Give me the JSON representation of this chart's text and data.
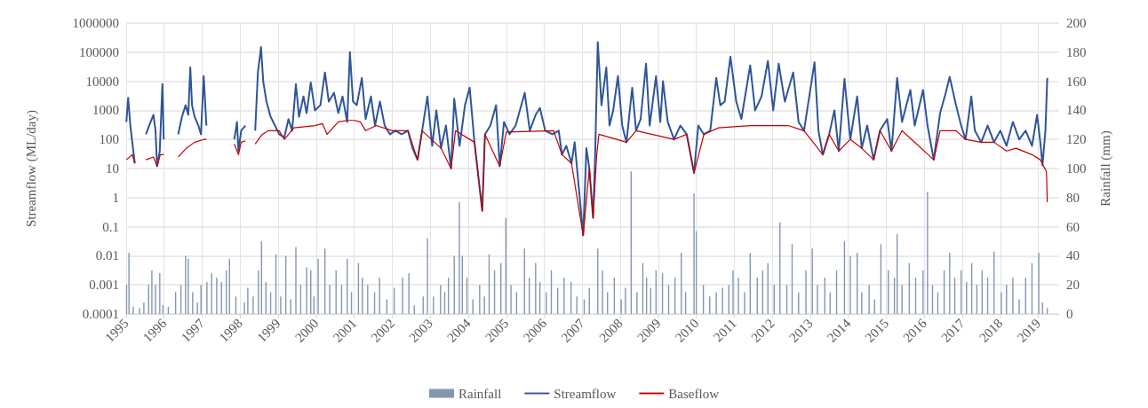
{
  "chart_data": {
    "type": "line",
    "ylabel": "Streamflow (ML/day)",
    "y2label": "Rainfall (mm)",
    "log": "y",
    "grid": true,
    "legend": "bottom",
    "marker": "none",
    "line_style": "solid",
    "xlim": [
      "1995-01-01",
      "2019-07-20"
    ],
    "xticks": [
      "1995",
      "1996",
      "1997",
      "1998",
      "1999",
      "2000",
      "2001",
      "2002",
      "2003",
      "2004",
      "2005",
      "2006",
      "2007",
      "2008",
      "2009",
      "2010",
      "2011",
      "2012",
      "2013",
      "2014",
      "2015",
      "2016",
      "2017",
      "2018",
      "2019"
    ],
    "ylim": [
      0.0001,
      1000000
    ],
    "yticks": [
      0.0001,
      0.001,
      0.01,
      0.1,
      1,
      10,
      100,
      1000,
      10000,
      100000,
      1000000
    ],
    "y2lim": [
      0,
      200
    ],
    "y2ticks": [
      0,
      20,
      40,
      60,
      80,
      100,
      120,
      140,
      160,
      180,
      200
    ],
    "series": [
      {
        "name": "Rainfall",
        "type": "bar",
        "axis": "y2",
        "color": "#8497b0",
        "x": [
          "1995-01-05",
          "1995-01-28",
          "1995-03-10",
          "1995-05-10",
          "1995-06-20",
          "1995-08-05",
          "1995-09-05",
          "1995-10-10",
          "1995-11-20",
          "1995-12-20",
          "1996-02-10",
          "1996-04-20",
          "1996-06-10",
          "1996-07-25",
          "1996-08-20",
          "1996-10-01",
          "1996-11-15",
          "1996-12-20",
          "1997-02-15",
          "1997-04-01",
          "1997-05-20",
          "1997-07-05",
          "1997-08-20",
          "1997-09-20",
          "1997-11-20",
          "1998-02-10",
          "1998-03-15",
          "1998-05-05",
          "1998-06-25",
          "1998-07-25",
          "1998-09-05",
          "1998-10-20",
          "1998-12-10",
          "1999-01-25",
          "1999-03-15",
          "1999-05-01",
          "1999-06-20",
          "1999-08-05",
          "1999-10-01",
          "1999-11-10",
          "1999-12-10",
          "2000-01-20",
          "2000-03-25",
          "2000-05-10",
          "2000-07-10",
          "2000-09-01",
          "2000-10-25",
          "2000-12-05",
          "2001-02-10",
          "2001-03-20",
          "2001-05-10",
          "2001-07-15",
          "2001-09-01",
          "2001-11-10",
          "2002-01-20",
          "2002-04-10",
          "2002-06-10",
          "2002-08-01",
          "2002-10-25",
          "2002-12-05",
          "2003-02-01",
          "2003-04-10",
          "2003-05-20",
          "2003-06-25",
          "2003-08-20",
          "2003-10-08",
          "2003-11-05",
          "2003-12-20",
          "2004-02-15",
          "2004-04-20",
          "2004-06-05",
          "2004-07-20",
          "2004-09-10",
          "2004-11-10",
          "2004-12-28",
          "2005-02-15",
          "2005-04-10",
          "2005-06-25",
          "2005-08-10",
          "2005-10-10",
          "2005-11-20",
          "2006-01-20",
          "2006-03-10",
          "2006-05-10",
          "2006-07-10",
          "2006-09-15",
          "2006-11-10",
          "2007-01-20",
          "2007-03-10",
          "2007-05-30",
          "2007-07-15",
          "2007-09-01",
          "2007-11-05",
          "2008-01-10",
          "2008-02-20",
          "2008-04-15",
          "2008-06-10",
          "2008-08-05",
          "2008-09-10",
          "2008-10-20",
          "2008-12-10",
          "2009-02-10",
          "2009-04-10",
          "2009-06-10",
          "2009-08-10",
          "2009-09-20",
          "2009-12-10",
          "2010-01-01",
          "2010-03-10",
          "2010-05-10",
          "2010-07-12",
          "2010-09-10",
          "2010-11-10",
          "2010-12-20",
          "2011-02-10",
          "2011-04-10",
          "2011-06-03",
          "2011-08-10",
          "2011-10-01",
          "2011-11-20",
          "2012-01-20",
          "2012-03-15",
          "2012-05-20",
          "2012-07-10",
          "2012-09-10",
          "2012-11-20",
          "2013-01-20",
          "2013-03-10",
          "2013-05-20",
          "2013-07-10",
          "2013-09-10",
          "2013-11-25",
          "2014-01-20",
          "2014-03-27",
          "2014-05-10",
          "2014-07-20",
          "2014-09-10",
          "2014-11-10",
          "2015-01-20",
          "2015-03-20",
          "2015-04-15",
          "2015-06-01",
          "2015-08-10",
          "2015-10-10",
          "2015-12-20",
          "2016-02-01",
          "2016-03-20",
          "2016-05-10",
          "2016-07-10",
          "2016-09-01",
          "2016-10-20",
          "2016-12-20",
          "2017-02-10",
          "2017-04-01",
          "2017-05-20",
          "2017-07-10",
          "2017-09-01",
          "2017-11-01",
          "2018-01-10",
          "2018-03-01",
          "2018-05-01",
          "2018-07-01",
          "2018-09-01",
          "2018-11-01",
          "2019-01-05",
          "2019-02-10",
          "2019-03-28"
        ],
        "values": [
          20,
          42,
          5,
          4,
          8,
          20,
          30,
          20,
          28,
          6,
          5,
          15,
          20,
          40,
          38,
          15,
          8,
          20,
          22,
          28,
          25,
          22,
          30,
          38,
          12,
          8,
          18,
          12,
          30,
          50,
          22,
          15,
          41,
          12,
          40,
          10,
          46,
          20,
          32,
          30,
          12,
          38,
          45,
          20,
          30,
          20,
          38,
          15,
          35,
          25,
          20,
          15,
          25,
          10,
          18,
          25,
          28,
          6,
          12,
          52,
          12,
          20,
          15,
          25,
          40,
          77,
          40,
          25,
          10,
          20,
          12,
          41,
          30,
          35,
          66,
          20,
          15,
          45,
          25,
          35,
          22,
          15,
          30,
          18,
          25,
          22,
          12,
          10,
          18,
          45,
          30,
          15,
          25,
          10,
          18,
          98,
          15,
          35,
          25,
          18,
          30,
          28,
          20,
          25,
          42,
          15,
          83,
          57,
          20,
          12,
          15,
          18,
          20,
          30,
          25,
          15,
          42,
          25,
          30,
          35,
          20,
          63,
          20,
          48,
          15,
          30,
          45,
          20,
          25,
          15,
          30,
          50,
          40,
          42,
          15,
          20,
          10,
          48,
          30,
          25,
          55,
          20,
          35,
          25,
          30,
          84,
          20,
          15,
          30,
          42,
          25,
          30,
          22,
          35,
          20,
          30,
          25,
          43,
          15,
          20,
          25,
          10,
          25,
          35,
          42,
          8,
          4
        ]
      },
      {
        "name": "Streamflow",
        "color": "#2f5597",
        "x": [
          "1995-01-03",
          "1995-01-20",
          "1995-02-10",
          "1995-03-05",
          "1995-03-25",
          "1995-04-20",
          "1995-07-10",
          "1995-08-10",
          "1995-09-20",
          "1995-10-10",
          "1995-10-25",
          "1995-11-20",
          "1995-12-15",
          "1995-12-28",
          "1996-02-01",
          "1996-05-15",
          "1996-06-20",
          "1996-07-25",
          "1996-08-20",
          "1996-09-08",
          "1996-09-25",
          "1996-10-20",
          "1996-11-25",
          "1996-12-20",
          "1997-01-15",
          "1997-02-10",
          "1997-03-15",
          "1997-11-05",
          "1997-12-01",
          "1997-12-15",
          "1998-01-10",
          "1998-02-20",
          "1998-04-10",
          "1998-05-25",
          "1998-06-20",
          "1998-07-20",
          "1998-08-10",
          "1998-09-10",
          "1998-10-20",
          "1998-12-01",
          "1999-01-10",
          "1999-03-01",
          "1999-04-10",
          "1999-05-15",
          "1999-06-20",
          "1999-07-20",
          "1999-09-01",
          "1999-10-01",
          "1999-11-10",
          "1999-12-20",
          "2000-02-10",
          "2000-03-25",
          "2000-05-01",
          "2000-06-20",
          "2000-08-01",
          "2000-09-10",
          "2000-10-25",
          "2000-11-20",
          "2000-12-20",
          "2001-01-25",
          "2001-03-15",
          "2001-04-20",
          "2001-06-10",
          "2001-07-20",
          "2001-09-05",
          "2001-10-20",
          "2001-12-10",
          "2002-02-01",
          "2002-04-01",
          "2002-06-01",
          "2002-07-15",
          "2002-09-01",
          "2002-10-15",
          "2002-12-05",
          "2003-01-20",
          "2003-03-01",
          "2003-04-15",
          "2003-06-01",
          "2003-07-20",
          "2003-08-20",
          "2003-10-10",
          "2003-12-01",
          "2004-01-15",
          "2004-03-01",
          "2004-05-15",
          "2004-06-10",
          "2004-08-01",
          "2004-09-25",
          "2004-10-30",
          "2004-12-10",
          "2005-02-01",
          "2005-04-01",
          "2005-06-27",
          "2005-08-15",
          "2005-10-10",
          "2005-11-20",
          "2006-01-10",
          "2006-03-20",
          "2006-05-20",
          "2006-06-20",
          "2006-08-01",
          "2006-09-20",
          "2006-10-20",
          "2007-01-10",
          "2007-02-10",
          "2007-03-10",
          "2007-04-15",
          "2007-05-05",
          "2007-05-30",
          "2007-07-05",
          "2007-08-20",
          "2007-09-20",
          "2007-10-25",
          "2007-12-10",
          "2008-01-20",
          "2008-03-01",
          "2008-04-25",
          "2008-06-01",
          "2008-07-15",
          "2008-09-05",
          "2008-10-10",
          "2008-12-10",
          "2009-01-20",
          "2009-02-15",
          "2009-04-01",
          "2009-06-01",
          "2009-08-01",
          "2009-10-01",
          "2009-12-10",
          "2010-01-20",
          "2010-03-15",
          "2010-05-15",
          "2010-07-12",
          "2010-08-20",
          "2010-10-01",
          "2010-11-25",
          "2011-01-20",
          "2011-03-10",
          "2011-06-03",
          "2011-07-20",
          "2011-09-20",
          "2011-11-20",
          "2012-01-10",
          "2012-03-03",
          "2012-05-01",
          "2012-07-20",
          "2012-09-10",
          "2012-11-01",
          "2013-02-10",
          "2013-03-20",
          "2013-05-01",
          "2013-07-01",
          "2013-08-20",
          "2013-10-01",
          "2013-11-25",
          "2014-01-20",
          "2014-03-27",
          "2014-05-10",
          "2014-07-01",
          "2014-09-01",
          "2014-11-01",
          "2015-01-10",
          "2015-02-20",
          "2015-04-15",
          "2015-06-01",
          "2015-08-20",
          "2015-10-01",
          "2015-12-20",
          "2016-02-01",
          "2016-04-01",
          "2016-06-01",
          "2016-07-25",
          "2016-09-01",
          "2016-11-01",
          "2016-12-20",
          "2017-02-01",
          "2017-03-28",
          "2017-05-01",
          "2017-07-01",
          "2017-09-01",
          "2017-11-01",
          "2018-01-01",
          "2018-03-01",
          "2018-05-01",
          "2018-07-01",
          "2018-09-01",
          "2018-11-01",
          "2018-12-20",
          "2019-01-20",
          "2019-02-10",
          "2019-03-10",
          "2019-03-28"
        ],
        "values": [
          400,
          2700,
          300,
          60,
          15,
          null,
          150,
          300,
          700,
          200,
          12,
          40,
          8000,
          100,
          null,
          150,
          600,
          1500,
          700,
          30000,
          1500,
          600,
          300,
          150,
          15000,
          300,
          null,
          100,
          400,
          40,
          200,
          300,
          null,
          200,
          20000,
          150000,
          10000,
          2000,
          600,
          300,
          150,
          120,
          500,
          200,
          8000,
          600,
          3000,
          800,
          9000,
          1000,
          1500,
          20000,
          2000,
          4000,
          800,
          3000,
          400,
          100000,
          2000,
          1500,
          13000,
          500,
          3000,
          300,
          2000,
          300,
          150,
          200,
          150,
          200,
          50,
          20,
          200,
          3000,
          60,
          1000,
          50,
          300,
          10,
          2500,
          60,
          1500,
          6000,
          80,
          0.35,
          150,
          300,
          1500,
          12,
          400,
          150,
          300,
          4000,
          200,
          700,
          1200,
          200,
          150,
          200,
          30,
          60,
          15,
          80,
          0.05,
          50,
          10,
          0.2,
          30,
          220000,
          1500,
          30000,
          300,
          1000,
          15000,
          300,
          80,
          6000,
          200,
          500,
          40000,
          300,
          15000,
          400,
          10000,
          400,
          100,
          300,
          150,
          7,
          300,
          150,
          200,
          13000,
          1500,
          2000,
          70000,
          2000,
          500,
          35000,
          1000,
          3000,
          50000,
          1000,
          40000,
          2000,
          20000,
          400,
          200,
          45000,
          200,
          30,
          150,
          1000,
          40,
          12000,
          100,
          3000,
          50,
          300,
          20,
          200,
          500,
          40,
          13000,
          400,
          5000,
          300,
          5000,
          300,
          20,
          800,
          4000,
          14000,
          1500,
          300,
          100,
          3000,
          200,
          80,
          300,
          80,
          200,
          60,
          400,
          100,
          200,
          60,
          700,
          80,
          13,
          200,
          13000
        ]
      },
      {
        "name": "Baseflow",
        "color": "#c00000",
        "x": [
          "1995-01-03",
          "1995-03-01",
          "1995-03-25",
          "1995-04-20",
          "1995-07-10",
          "1995-09-20",
          "1995-10-25",
          "1995-11-25",
          "1995-12-28",
          "1996-02-01",
          "1996-05-15",
          "1996-08-01",
          "1996-10-20",
          "1997-01-15",
          "1997-02-10",
          "1997-03-15",
          "1997-11-05",
          "1997-12-15",
          "1998-01-10",
          "1998-02-20",
          "1998-04-10",
          "1998-05-25",
          "1998-08-01",
          "1998-10-01",
          "1999-01-10",
          "1999-03-01",
          "1999-06-01",
          "1999-12-20",
          "2000-03-01",
          "2000-04-15",
          "2000-08-01",
          "2000-11-01",
          "2001-01-01",
          "2001-03-01",
          "2001-04-20",
          "2001-08-01",
          "2002-01-01",
          "2002-06-01",
          "2002-09-01",
          "2002-10-15",
          "2003-04-15",
          "2003-07-20",
          "2003-09-01",
          "2004-03-01",
          "2004-05-15",
          "2004-06-10",
          "2004-10-30",
          "2005-01-01",
          "2006-04-01",
          "2006-06-20",
          "2006-09-20",
          "2007-01-10",
          "2007-03-10",
          "2007-04-15",
          "2007-05-20",
          "2007-06-10",
          "2008-03-01",
          "2008-06-01",
          "2009-06-01",
          "2009-10-01",
          "2009-12-10",
          "2010-03-15",
          "2010-08-01",
          "2011-06-01",
          "2012-06-01",
          "2012-11-01",
          "2013-05-01",
          "2013-07-01",
          "2013-10-01",
          "2014-01-20",
          "2014-05-10",
          "2014-09-01",
          "2014-11-01",
          "2015-02-20",
          "2015-06-01",
          "2016-04-01",
          "2016-06-01",
          "2016-11-01",
          "2017-02-01",
          "2017-07-01",
          "2017-11-01",
          "2018-03-01",
          "2018-06-01",
          "2018-11-01",
          "2019-01-20",
          "2019-02-20",
          "2019-03-20",
          "2019-03-28"
        ],
        "values": [
          20,
          30,
          15,
          null,
          20,
          25,
          12,
          30,
          30,
          null,
          25,
          50,
          80,
          100,
          100,
          null,
          70,
          30,
          80,
          90,
          null,
          70,
          150,
          200,
          200,
          100,
          250,
          300,
          350,
          150,
          400,
          450,
          450,
          400,
          200,
          300,
          200,
          200,
          20,
          200,
          50,
          10,
          200,
          80,
          0.35,
          150,
          12,
          180,
          200,
          30,
          15,
          0.05,
          10,
          0.2,
          30,
          150,
          80,
          200,
          100,
          150,
          7,
          150,
          250,
          300,
          300,
          200,
          30,
          150,
          40,
          100,
          50,
          20,
          200,
          40,
          200,
          20,
          200,
          200,
          100,
          80,
          80,
          40,
          50,
          30,
          20,
          12,
          8,
          0.7
        ]
      }
    ]
  }
}
